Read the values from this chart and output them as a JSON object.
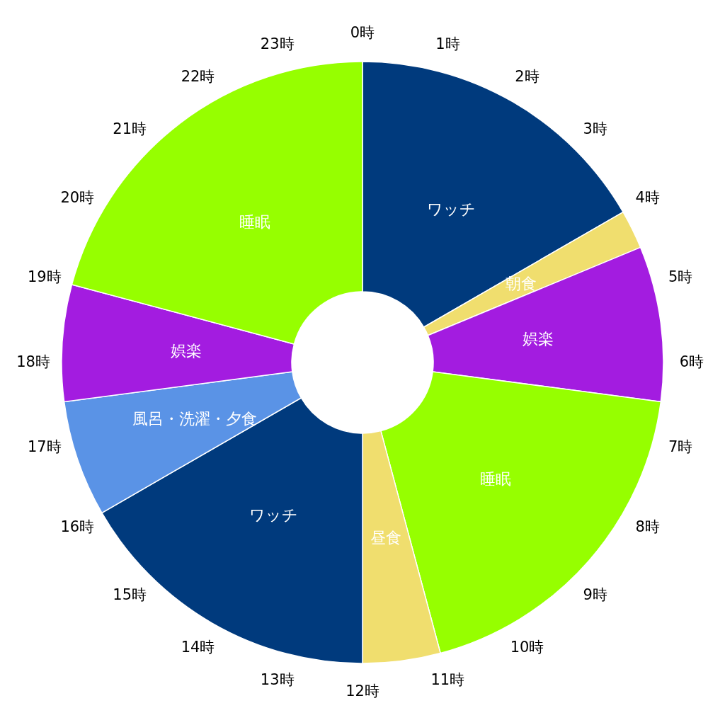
{
  "chart_data": {
    "type": "donut",
    "categories": [
      "ワッチ",
      "朝食",
      "娯楽",
      "睡眠",
      "昼食",
      "ワッチ",
      "風呂・洗濯・夕食",
      "娯楽",
      "睡眠"
    ],
    "values": [
      16.67,
      2.08,
      8.33,
      18.75,
      4.17,
      16.67,
      6.25,
      6.25,
      20.83
    ],
    "colors": [
      "#003a7d",
      "#f0de6e",
      "#a31ce0",
      "#96ff00",
      "#f0de6e",
      "#003a7d",
      "#5a93e6",
      "#a31ce0",
      "#96ff00"
    ],
    "annotations": [
      "0時",
      "1時",
      "2時",
      "3時",
      "4時",
      "5時",
      "6時",
      "7時",
      "8時",
      "9時",
      "10時",
      "11時",
      "12時",
      "13時",
      "14時",
      "15時",
      "16時",
      "17時",
      "18時",
      "19時",
      "20時",
      "21時",
      "22時",
      "23時"
    ]
  }
}
